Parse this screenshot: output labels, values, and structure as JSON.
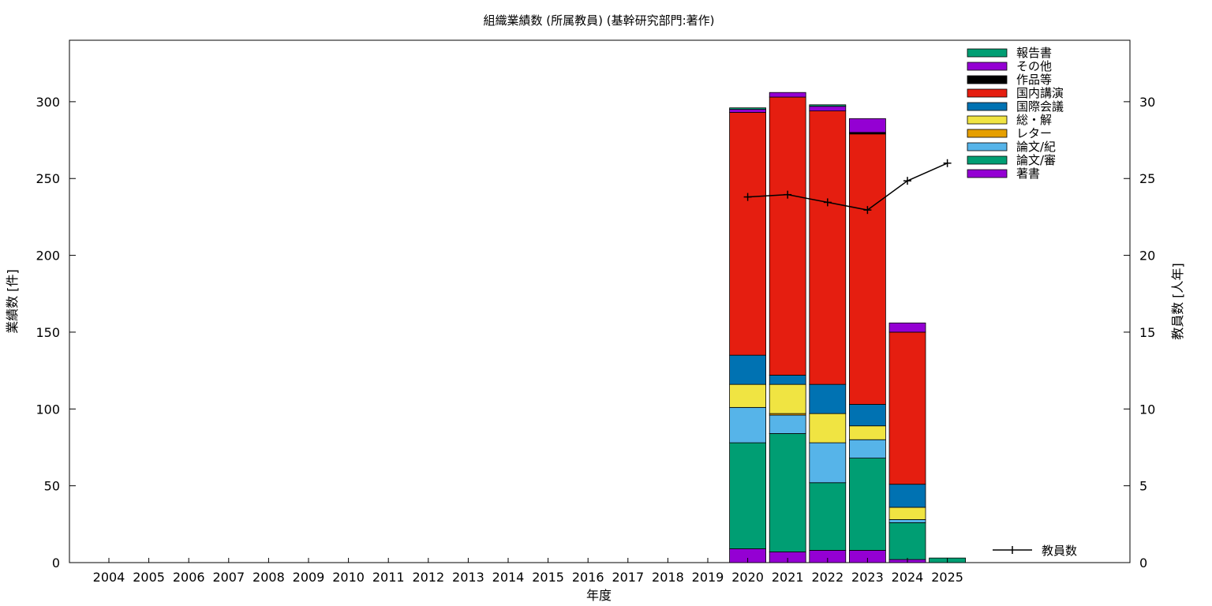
{
  "chart_data": {
    "type": "bar",
    "stacked": true,
    "title": "組織業績数 (所属教員) (基幹研究部門:著作)",
    "xlabel": "年度",
    "ylabel": "業績数 [件]",
    "y2label": "教員数 [人年]",
    "ylim": [
      0,
      340
    ],
    "y2lim": [
      0,
      34
    ],
    "yticks": [
      0,
      50,
      100,
      150,
      200,
      250,
      300
    ],
    "y2ticks": [
      0,
      5,
      10,
      15,
      20,
      25,
      30
    ],
    "categories": [
      "2004",
      "2005",
      "2006",
      "2007",
      "2008",
      "2009",
      "2010",
      "2011",
      "2012",
      "2013",
      "2014",
      "2015",
      "2016",
      "2017",
      "2018",
      "2019",
      "2020",
      "2021",
      "2022",
      "2023",
      "2024",
      "2025"
    ],
    "series": [
      {
        "name": "著書",
        "color": "#9400d3",
        "values": [
          0,
          0,
          0,
          0,
          0,
          0,
          0,
          0,
          0,
          0,
          0,
          0,
          0,
          0,
          0,
          0,
          9,
          7,
          8,
          8,
          2,
          0
        ]
      },
      {
        "name": "論文/審",
        "color": "#009e73",
        "values": [
          0,
          0,
          0,
          0,
          0,
          0,
          0,
          0,
          0,
          0,
          0,
          0,
          0,
          0,
          0,
          0,
          69,
          77,
          44,
          60,
          24,
          3
        ]
      },
      {
        "name": "論文/紀",
        "color": "#56b4e9",
        "values": [
          0,
          0,
          0,
          0,
          0,
          0,
          0,
          0,
          0,
          0,
          0,
          0,
          0,
          0,
          0,
          0,
          23,
          12,
          26,
          12,
          2,
          0
        ]
      },
      {
        "name": "レター",
        "color": "#e69f00",
        "values": [
          0,
          0,
          0,
          0,
          0,
          0,
          0,
          0,
          0,
          0,
          0,
          0,
          0,
          0,
          0,
          0,
          0,
          1,
          0,
          0,
          0,
          0
        ]
      },
      {
        "name": "総・解",
        "color": "#f0e442",
        "values": [
          0,
          0,
          0,
          0,
          0,
          0,
          0,
          0,
          0,
          0,
          0,
          0,
          0,
          0,
          0,
          0,
          15,
          19,
          19,
          9,
          8,
          0
        ]
      },
      {
        "name": "国際会議",
        "color": "#0072b2",
        "values": [
          0,
          0,
          0,
          0,
          0,
          0,
          0,
          0,
          0,
          0,
          0,
          0,
          0,
          0,
          0,
          0,
          19,
          6,
          19,
          14,
          15,
          0
        ]
      },
      {
        "name": "国内講演",
        "color": "#e51e10",
        "values": [
          0,
          0,
          0,
          0,
          0,
          0,
          0,
          0,
          0,
          0,
          0,
          0,
          0,
          0,
          0,
          0,
          158,
          181,
          178,
          176,
          99,
          0
        ]
      },
      {
        "name": "作品等",
        "color": "#000000",
        "values": [
          0,
          0,
          0,
          0,
          0,
          0,
          0,
          0,
          0,
          0,
          0,
          0,
          0,
          0,
          0,
          0,
          0,
          0,
          0,
          1,
          0,
          0
        ]
      },
      {
        "name": "その他",
        "color": "#9400d3",
        "values": [
          0,
          0,
          0,
          0,
          0,
          0,
          0,
          0,
          0,
          0,
          0,
          0,
          0,
          0,
          0,
          0,
          2,
          3,
          3,
          9,
          6,
          0
        ]
      },
      {
        "name": "報告書",
        "color": "#009e73",
        "values": [
          0,
          0,
          0,
          0,
          0,
          0,
          0,
          0,
          0,
          0,
          0,
          0,
          0,
          0,
          0,
          0,
          1,
          0,
          1,
          0,
          0,
          0
        ]
      }
    ],
    "line_series": {
      "name": "教員数",
      "axis": "y2",
      "color": "#000000",
      "x": [
        "2020",
        "2021",
        "2022",
        "2023",
        "2024",
        "2025"
      ],
      "values": [
        23.8,
        23.95,
        23.45,
        22.95,
        24.85,
        26.0
      ]
    },
    "legend_position": "top-right",
    "line_legend_position": "bottom-right",
    "grid": false
  }
}
